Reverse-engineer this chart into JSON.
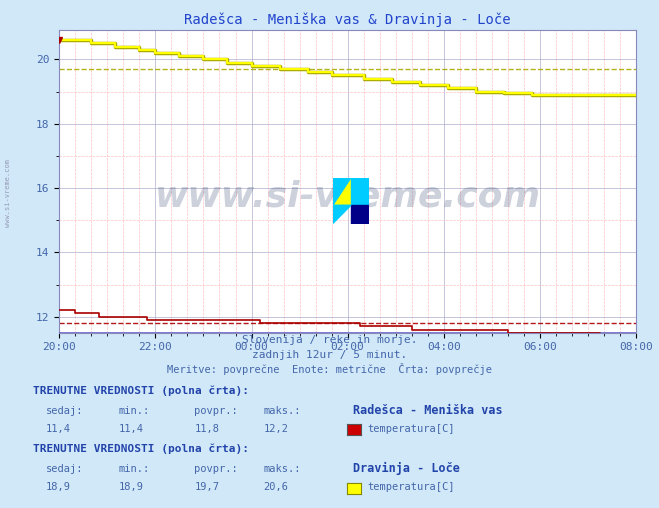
{
  "title": "Radešca - Meniška vas & Dravinja - Loče",
  "bg_color": "#d0e8f8",
  "plot_bg_color": "#ffffff",
  "x_tick_labels": [
    "20:00",
    "22:00",
    "00:00",
    "02:00",
    "04:00",
    "06:00",
    "08:00"
  ],
  "x_tick_positions": [
    0,
    24,
    48,
    72,
    96,
    120,
    144
  ],
  "ylim_min": 11.5,
  "ylim_max": 20.9,
  "y_ticks": [
    12,
    14,
    16,
    18,
    20
  ],
  "red_line_avg": 11.8,
  "yellow_line_avg": 19.7,
  "red_color": "#aa0000",
  "yellow_color": "#ffff00",
  "yellow_border_color": "#aaaa00",
  "blue_line_color": "#6666cc",
  "purple_end_color": "#660066",
  "subtitle1": "Slovenija / reke in morje.",
  "subtitle2": "zadnjih 12ur / 5 minut.",
  "subtitle3": "Meritve: povprečne  Enote: metrične  Črta: povprečje",
  "table1_header": "TRENUTNE VREDNOSTI (polna črta):",
  "table1_col_headers": [
    "sedaj:",
    "min.:",
    "povpr.:",
    "maks.:"
  ],
  "table1_vals": [
    "11,4",
    "11,4",
    "11,8",
    "12,2"
  ],
  "table1_station": "Radešca - Meniška vas",
  "table1_param": "temperatura[C]",
  "table1_swatch_color": "#cc0000",
  "table2_header": "TRENUTNE VREDNOSTI (polna črta):",
  "table2_col_headers": [
    "sedaj:",
    "min.:",
    "povpr.:",
    "maks.:"
  ],
  "table2_vals": [
    "18,9",
    "18,9",
    "19,7",
    "20,6"
  ],
  "table2_station": "Dravinja - Loče",
  "table2_param": "temperatura[C]",
  "table2_swatch_color": "#ffff00",
  "table2_swatch_border": "#888800",
  "watermark_text": "www.si-vreme.com",
  "watermark_color": "#1a3060",
  "watermark_alpha": 0.22,
  "side_text": "www.si-vreme.com",
  "text_color": "#4466aa",
  "bold_text_color": "#2244aa"
}
